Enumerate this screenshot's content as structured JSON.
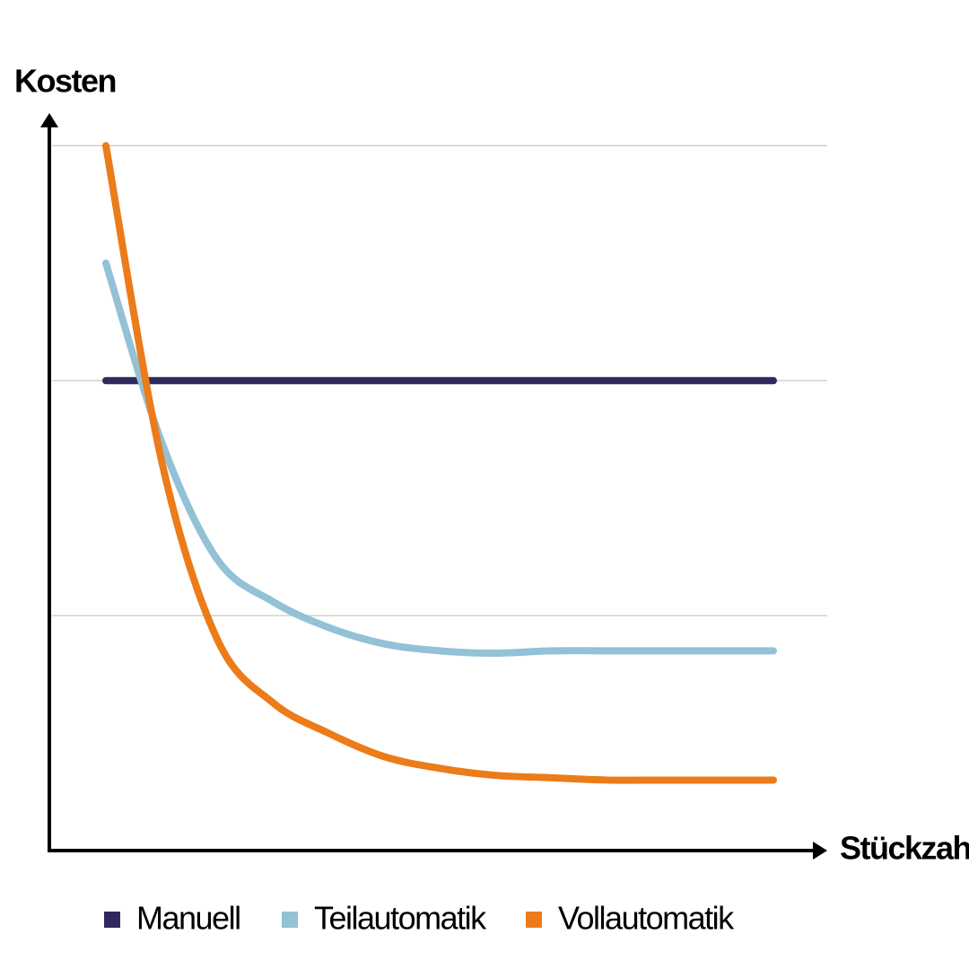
{
  "chart_data": {
    "type": "line",
    "y_label": "Kosten",
    "x_label": "Stückzahl",
    "x": [
      1,
      2,
      3,
      4,
      5,
      6,
      7,
      8,
      9,
      10,
      11,
      12,
      13
    ],
    "xlim": [
      0,
      14
    ],
    "ylim": [
      0,
      3.2
    ],
    "yticks": [
      1,
      2,
      3
    ],
    "grid": true,
    "legend": "bottom",
    "series": [
      {
        "name": "Manuell",
        "color": "#2e2a5c",
        "values": [
          2,
          2,
          2,
          2,
          2,
          2,
          2,
          2,
          2,
          2,
          2,
          2,
          2
        ]
      },
      {
        "name": "Teilautomatik",
        "color": "#93c1d6",
        "values": [
          2.5,
          1.74,
          1.24,
          1.06,
          0.95,
          0.88,
          0.85,
          0.84,
          0.85,
          0.85,
          0.85,
          0.85,
          0.85
        ]
      },
      {
        "name": "Vollautomatik",
        "color": "#ec7b1a",
        "values": [
          3.0,
          1.66,
          0.9,
          0.63,
          0.5,
          0.4,
          0.35,
          0.32,
          0.31,
          0.3,
          0.3,
          0.3,
          0.3
        ]
      }
    ]
  }
}
